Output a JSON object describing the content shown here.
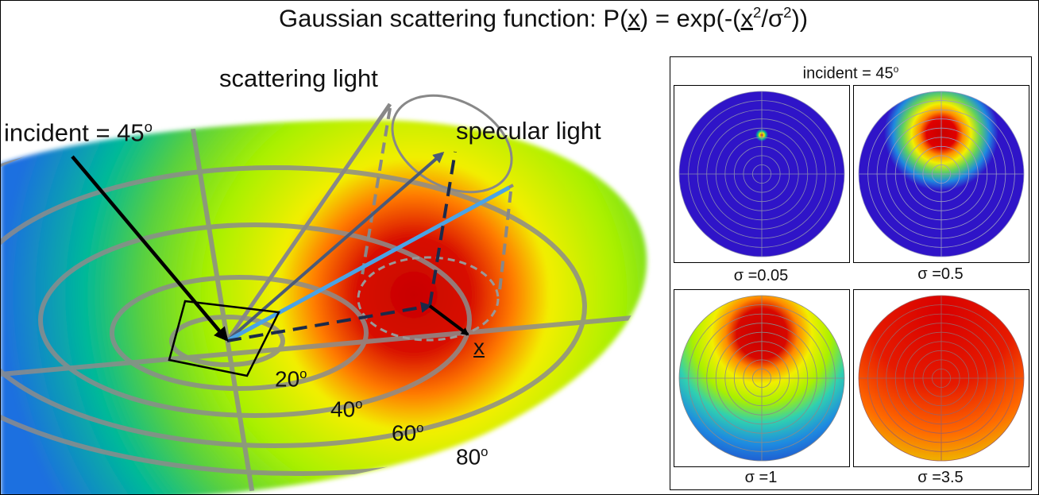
{
  "title": {
    "prefix": "Gaussian scattering function: P(",
    "var1": "x",
    "mid": ") = exp(-(",
    "var2": "x",
    "sq1": "2",
    "slash": "/σ",
    "sq2": "2",
    "suffix": "))"
  },
  "labels": {
    "incident": {
      "text": "incident = 45",
      "deg": "o"
    },
    "scattering": "scattering light",
    "specular": "specular light",
    "x_vector": "x",
    "angles": [
      {
        "text": "20",
        "deg": "o"
      },
      {
        "text": "40",
        "deg": "o"
      },
      {
        "text": "60",
        "deg": "o"
      },
      {
        "text": "80",
        "deg": "o"
      }
    ]
  },
  "panel": {
    "title": {
      "text": "incident = 45",
      "deg": "o"
    },
    "plots": [
      {
        "caption": "σ =0.05",
        "sigma": 0.05
      },
      {
        "caption": "σ =0.5",
        "sigma": 0.5
      },
      {
        "caption": "σ =1",
        "sigma": 1
      },
      {
        "caption": "σ =3.5",
        "sigma": 3.5
      }
    ]
  },
  "colors": {
    "heat_red": "#c80000",
    "heat_orange": "#ff8a00",
    "heat_yellow": "#f2ef00",
    "heat_green": "#a8f000",
    "heat_teal": "#00b89a",
    "heat_blue": "#1e6fe0",
    "deep_blue": "#2f14c8",
    "specular_arrow": "#4aa3e6",
    "scatter_arrow": "#4a5a78",
    "cone": "#888888",
    "dashed_navy": "#1b2a4a"
  }
}
